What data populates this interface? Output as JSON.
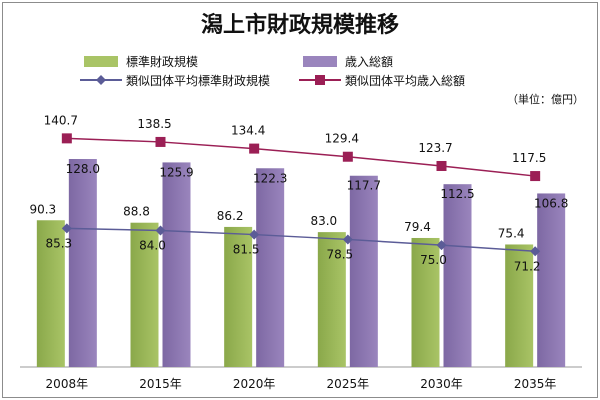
{
  "chart_data": {
    "type": "bar",
    "title": "潟上市財政規模推移",
    "unit_note": "（単位：億円）",
    "categories": [
      "2008年",
      "2015年",
      "2020年",
      "2025年",
      "2030年",
      "2035年"
    ],
    "series": [
      {
        "name": "標準財政規模",
        "kind": "bar",
        "color": "#a9c466",
        "values": [
          90.3,
          88.8,
          86.2,
          83.0,
          79.4,
          75.4
        ]
      },
      {
        "name": "歳入総額",
        "kind": "bar",
        "color": "#9a85bd",
        "values": [
          128.0,
          125.9,
          122.3,
          117.7,
          112.5,
          106.8
        ]
      },
      {
        "name": "類似団体平均標準財政規模",
        "kind": "line",
        "marker": "diamond",
        "color": "#5b5c97",
        "values": [
          85.3,
          84.0,
          81.5,
          78.5,
          75.0,
          71.2
        ]
      },
      {
        "name": "類似団体平均歳入総額",
        "kind": "line",
        "marker": "square",
        "color": "#9b1f55",
        "values": [
          140.7,
          138.5,
          134.4,
          129.4,
          123.7,
          117.5
        ]
      }
    ],
    "ylim": [
      0,
      160
    ],
    "grid": true,
    "legend_position": "top"
  }
}
